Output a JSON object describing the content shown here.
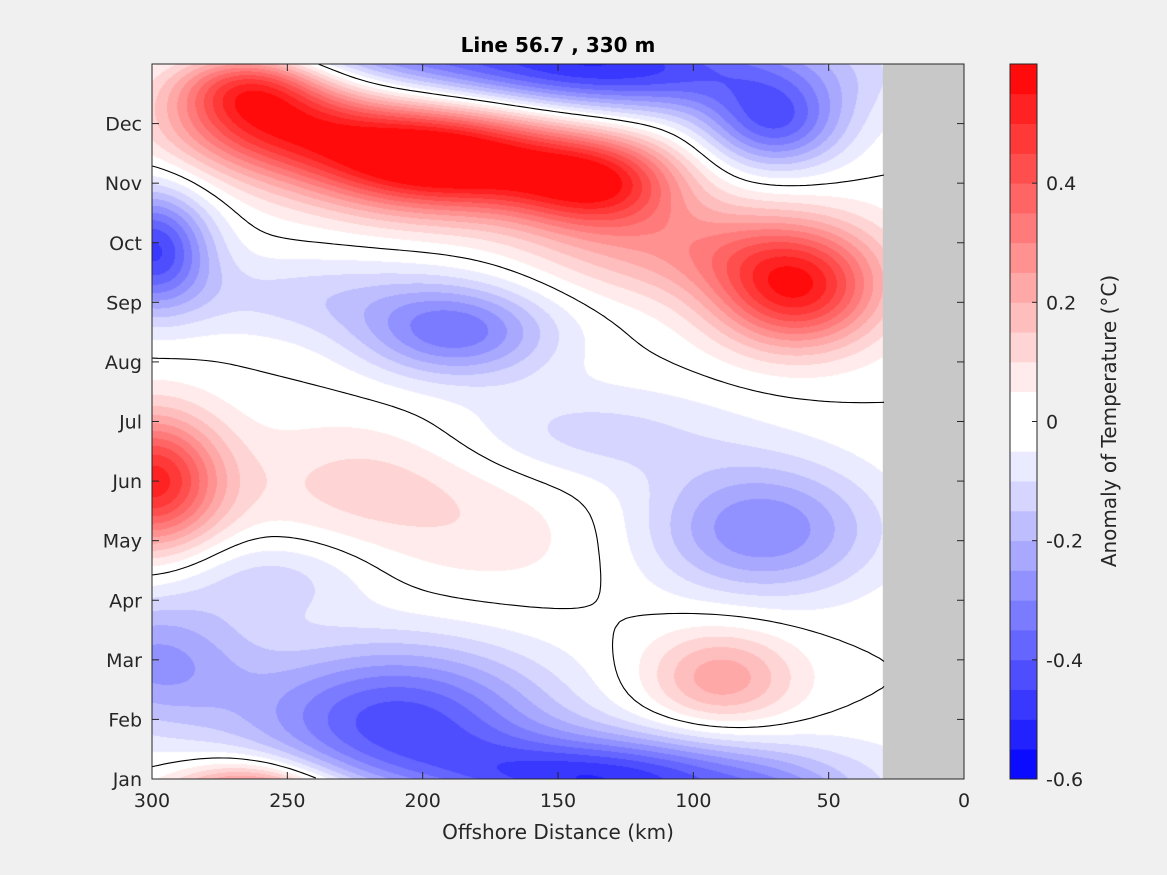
{
  "chart_data": {
    "type": "heatmap",
    "subtype": "filled-contour",
    "title": "Line 56.7 , 330 m",
    "xlabel": "Offshore Distance (km)",
    "ylabel": "",
    "x_axis": {
      "range": [
        300,
        0
      ],
      "reversed": true,
      "ticks": [
        300,
        250,
        200,
        150,
        100,
        50,
        0
      ],
      "tick_labels": [
        "300",
        "250",
        "200",
        "150",
        "100",
        "50",
        "0"
      ]
    },
    "y_axis": {
      "range": [
        1,
        13
      ],
      "ticks": [
        1,
        2,
        3,
        4,
        5,
        6,
        7,
        8,
        9,
        10,
        11,
        12
      ],
      "tick_labels": [
        "Jan",
        "Feb",
        "Mar",
        "Apr",
        "May",
        "Jun",
        "Jul",
        "Aug",
        "Sep",
        "Oct",
        "Nov",
        "Dec"
      ]
    },
    "colorbar": {
      "label": "Anomaly of Temperature (°C)",
      "range": [
        -0.6,
        0.6
      ],
      "levels_step": 0.05,
      "ticks": [
        -0.6,
        -0.4,
        -0.2,
        0,
        0.2,
        0.4
      ],
      "tick_labels": [
        "-0.6",
        "-0.4",
        "-0.2",
        "0",
        "0.2",
        "0.4"
      ],
      "colormap": "blue-white-red",
      "cold_color": "#0000ff",
      "warm_color": "#ff0000",
      "neutral_color": "#ffffff"
    },
    "no_data_region": {
      "x_range": [
        30,
        0
      ],
      "color": "#c8c8c8"
    },
    "anomaly_features": [
      {
        "x": 190,
        "y": 11.3,
        "value": 0.55,
        "sigma_x": 35,
        "sigma_y": 0.6
      },
      {
        "x": 135,
        "y": 11.0,
        "value": 0.45,
        "sigma_x": 22,
        "sigma_y": 0.55
      },
      {
        "x": 260,
        "y": 12.2,
        "value": 0.35,
        "sigma_x": 25,
        "sigma_y": 0.6
      },
      {
        "x": 220,
        "y": 11.8,
        "value": 0.3,
        "sigma_x": 40,
        "sigma_y": 0.6
      },
      {
        "x": 62,
        "y": 9.2,
        "value": 0.5,
        "sigma_x": 22,
        "sigma_y": 0.7
      },
      {
        "x": 100,
        "y": 9.9,
        "value": 0.22,
        "sigma_x": 40,
        "sigma_y": 0.6
      },
      {
        "x": 300,
        "y": 6.0,
        "value": 0.52,
        "sigma_x": 18,
        "sigma_y": 0.8
      },
      {
        "x": 220,
        "y": 6.0,
        "value": 0.12,
        "sigma_x": 35,
        "sigma_y": 0.8
      },
      {
        "x": 170,
        "y": 5.0,
        "value": 0.06,
        "sigma_x": 35,
        "sigma_y": 0.8
      },
      {
        "x": 90,
        "y": 2.7,
        "value": 0.24,
        "sigma_x": 20,
        "sigma_y": 0.6
      },
      {
        "x": 265,
        "y": 0.7,
        "value": 0.25,
        "sigma_x": 18,
        "sigma_y": 0.4
      },
      {
        "x": 300,
        "y": 9.9,
        "value": -0.45,
        "sigma_x": 15,
        "sigma_y": 0.7
      },
      {
        "x": 188,
        "y": 8.5,
        "value": -0.32,
        "sigma_x": 25,
        "sigma_y": 0.55
      },
      {
        "x": 70,
        "y": 12.0,
        "value": -0.35,
        "sigma_x": 18,
        "sigma_y": 0.55
      },
      {
        "x": 110,
        "y": 12.9,
        "value": -0.25,
        "sigma_x": 55,
        "sigma_y": 0.6
      },
      {
        "x": 75,
        "y": 5.2,
        "value": -0.3,
        "sigma_x": 30,
        "sigma_y": 0.8
      },
      {
        "x": 210,
        "y": 2.0,
        "value": -0.42,
        "sigma_x": 40,
        "sigma_y": 0.9
      },
      {
        "x": 300,
        "y": 3.0,
        "value": -0.25,
        "sigma_x": 25,
        "sigma_y": 0.8
      },
      {
        "x": 140,
        "y": 1.0,
        "value": -0.25,
        "sigma_x": 40,
        "sigma_y": 0.5
      },
      {
        "x": 255,
        "y": 4.4,
        "value": -0.12,
        "sigma_x": 25,
        "sigma_y": 0.5
      },
      {
        "x": 140,
        "y": 6.8,
        "value": -0.12,
        "sigma_x": 40,
        "sigma_y": 0.6
      },
      {
        "x": 240,
        "y": 9.1,
        "value": -0.12,
        "sigma_x": 40,
        "sigma_y": 0.5
      }
    ]
  }
}
